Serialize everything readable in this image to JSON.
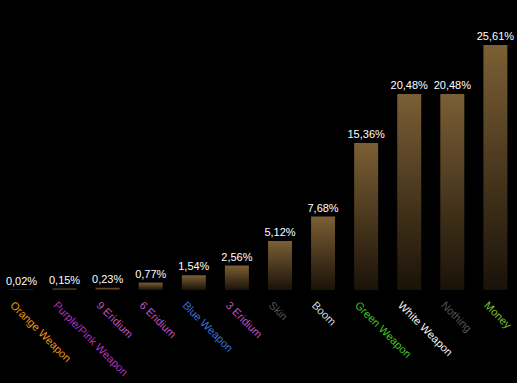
{
  "chart_data": {
    "type": "bar",
    "categories": [
      "Orange Weapon",
      "Purple/Pink Weapon",
      "9 Eridium",
      "6 Eridium",
      "Blue Weapon",
      "3 Eridium",
      "Skin",
      "Boom",
      "Green Weapon",
      "White Weapon",
      "Nothing",
      "Money"
    ],
    "values": [
      0.02,
      0.15,
      0.23,
      0.77,
      1.54,
      2.56,
      5.12,
      7.68,
      15.36,
      20.48,
      20.48,
      25.61
    ],
    "value_labels": [
      "0,02%",
      "0,15%",
      "0,23%",
      "0,77%",
      "1,54%",
      "2,56%",
      "5,12%",
      "7,68%",
      "15,36%",
      "20,48%",
      "20,48%",
      "25,61%"
    ],
    "color": "#7b5f35",
    "data_labels": true,
    "tick_labels": "x",
    "grid": false
  }
}
